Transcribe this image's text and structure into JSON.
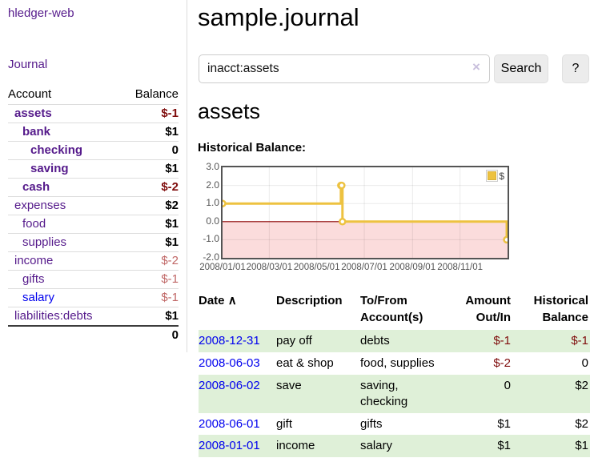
{
  "sidebar": {
    "app_title": "hledger-web",
    "journal_label": "Journal",
    "accounts_table": {
      "headers": {
        "account": "Account",
        "balance": "Balance"
      },
      "rows": [
        {
          "name": "assets",
          "balance": "$-1",
          "level": 1,
          "bold": true,
          "balance_class": "neg-strong"
        },
        {
          "name": "bank",
          "balance": "$1",
          "level": 2,
          "bold": true,
          "balance_class": ""
        },
        {
          "name": "checking",
          "balance": "0",
          "level": 3,
          "bold": true,
          "balance_class": ""
        },
        {
          "name": "saving",
          "balance": "$1",
          "level": 3,
          "bold": true,
          "balance_class": ""
        },
        {
          "name": "cash",
          "balance": "$-2",
          "level": 2,
          "bold": true,
          "balance_class": "neg-strong"
        },
        {
          "name": "expenses",
          "balance": "$2",
          "level": 1,
          "bold": false,
          "balance_class": ""
        },
        {
          "name": "food",
          "balance": "$1",
          "level": 2,
          "bold": false,
          "balance_class": ""
        },
        {
          "name": "supplies",
          "balance": "$1",
          "level": 2,
          "bold": false,
          "balance_class": ""
        },
        {
          "name": "income",
          "balance": "$-2",
          "level": 1,
          "bold": false,
          "balance_class": "neg-soft"
        },
        {
          "name": "gifts",
          "balance": "$-1",
          "level": 2,
          "bold": false,
          "balance_class": "neg-soft"
        },
        {
          "name": "salary",
          "balance": "$-1",
          "level": 2,
          "bold": false,
          "balance_class": "neg-soft",
          "unvisited": true
        },
        {
          "name": "liabilities:debts",
          "balance": "$1",
          "level": 1,
          "bold": false,
          "balance_class": ""
        }
      ],
      "total": "0"
    }
  },
  "main": {
    "title": "sample.journal",
    "search": {
      "value": "inacct:assets",
      "clear_icon": "×",
      "button_label": "Search",
      "help_label": "?"
    },
    "section_title": "assets",
    "chart_label": "Historical Balance:",
    "register_table": {
      "headers": {
        "date": "Date",
        "sort_indicator": "∧",
        "description": "Description",
        "accounts": "To/From\nAccount(s)",
        "amount": "Amount\nOut/In",
        "balance": "Historical\nBalance"
      },
      "rows": [
        {
          "date": "2008-12-31",
          "description": "pay off",
          "accounts": "debts",
          "amount": "$-1",
          "balance": "$-1",
          "amount_class": "neg",
          "balance_class": "neg"
        },
        {
          "date": "2008-06-03",
          "description": "eat & shop",
          "accounts": "food, supplies",
          "amount": "$-2",
          "balance": "0",
          "amount_class": "neg",
          "balance_class": ""
        },
        {
          "date": "2008-06-02",
          "description": "save",
          "accounts": "saving,\nchecking",
          "amount": "0",
          "balance": "$2",
          "amount_class": "",
          "balance_class": ""
        },
        {
          "date": "2008-06-01",
          "description": "gift",
          "accounts": "gifts",
          "amount": "$1",
          "balance": "$2",
          "amount_class": "",
          "balance_class": ""
        },
        {
          "date": "2008-01-01",
          "description": "income",
          "accounts": "salary",
          "amount": "$1",
          "balance": "$1",
          "amount_class": "",
          "balance_class": ""
        }
      ]
    }
  },
  "chart_data": {
    "type": "line",
    "title": "Historical Balance",
    "style": "steps",
    "series": [
      {
        "name": "$",
        "color": "#edc240",
        "points": [
          [
            "2008-01-01",
            1
          ],
          [
            "2008-06-01",
            2
          ],
          [
            "2008-06-02",
            2
          ],
          [
            "2008-06-03",
            0
          ],
          [
            "2008-12-31",
            -1
          ]
        ]
      }
    ],
    "x_ticks": [
      "2008/01/01",
      "2008/03/01",
      "2008/05/01",
      "2008/07/01",
      "2008/09/01",
      "2008/11/01"
    ],
    "y_ticks": [
      3.0,
      2.0,
      1.0,
      0.0,
      -1.0,
      -2.0
    ],
    "xlim": [
      "2008-01-01",
      "2009-01-01"
    ],
    "ylim": [
      -2,
      3
    ],
    "grid": true,
    "legend_position": "top-right",
    "negative_region_color": "#fbdcdc",
    "zero_line_color": "#8b0000",
    "grid_color": "rgba(0,0,0,0.08)"
  },
  "colors": {
    "link_purple": "#551a8b",
    "link_blue": "#0000ee",
    "negative_strong": "#7f0c0c",
    "negative_soft": "#c06766",
    "row_stripe_green": "#dff0d8",
    "chart_line": "#edc240",
    "chart_border": "#545454"
  }
}
